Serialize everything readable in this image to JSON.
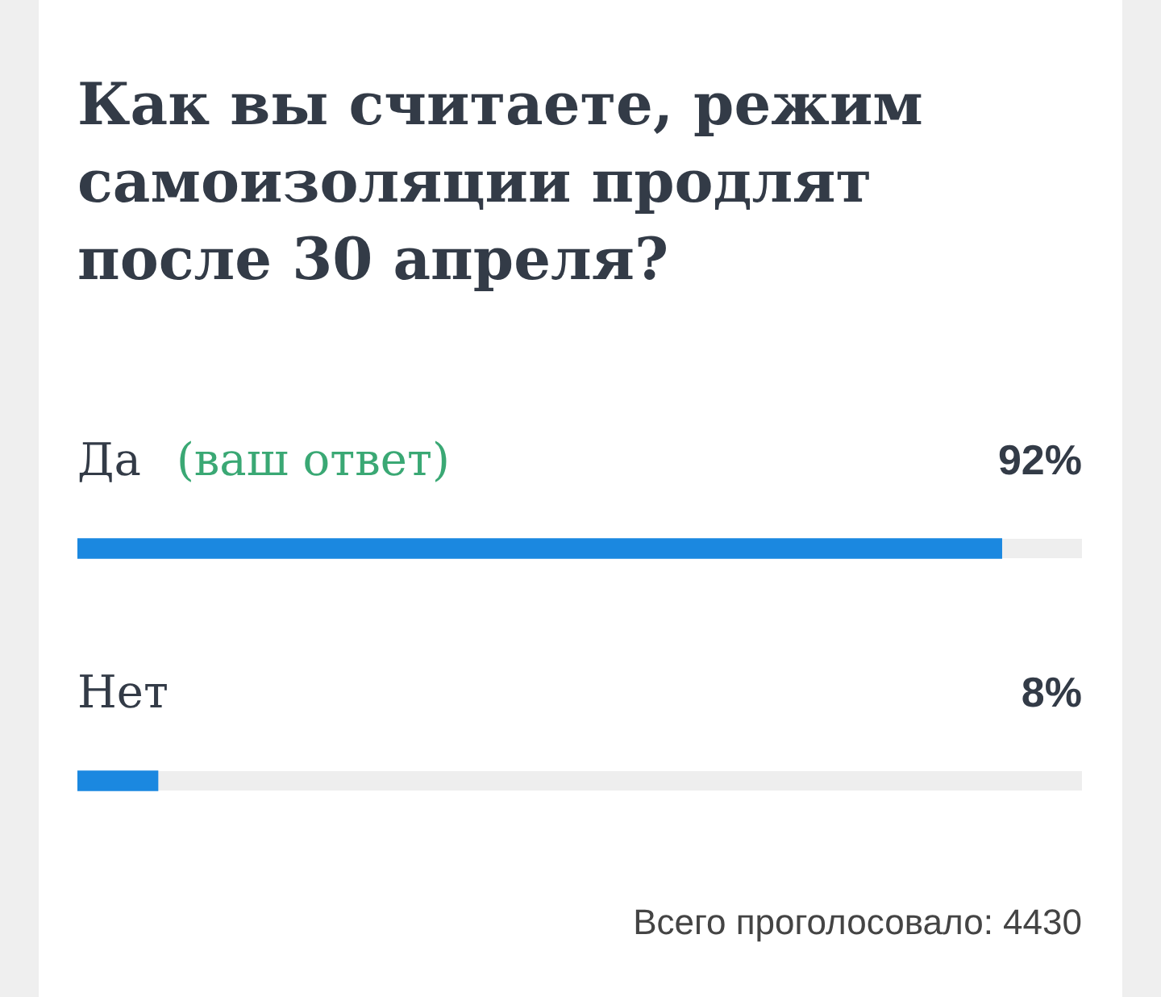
{
  "chart_data": {
    "type": "bar",
    "orientation": "horizontal",
    "title": "Как вы считаете, режим самоизоляции продлят после 30 апреля?",
    "categories": [
      "Да",
      "Нет"
    ],
    "values": [
      92,
      8
    ],
    "color": "#1b88e0",
    "value_labels": [
      "92%",
      "8%"
    ],
    "xlim": [
      0,
      100
    ],
    "tick_labels": "y",
    "annotations": [
      {
        "text": "(ваш ответ)",
        "y": "Да"
      },
      "Всего проголосовало: 4430"
    ]
  }
}
